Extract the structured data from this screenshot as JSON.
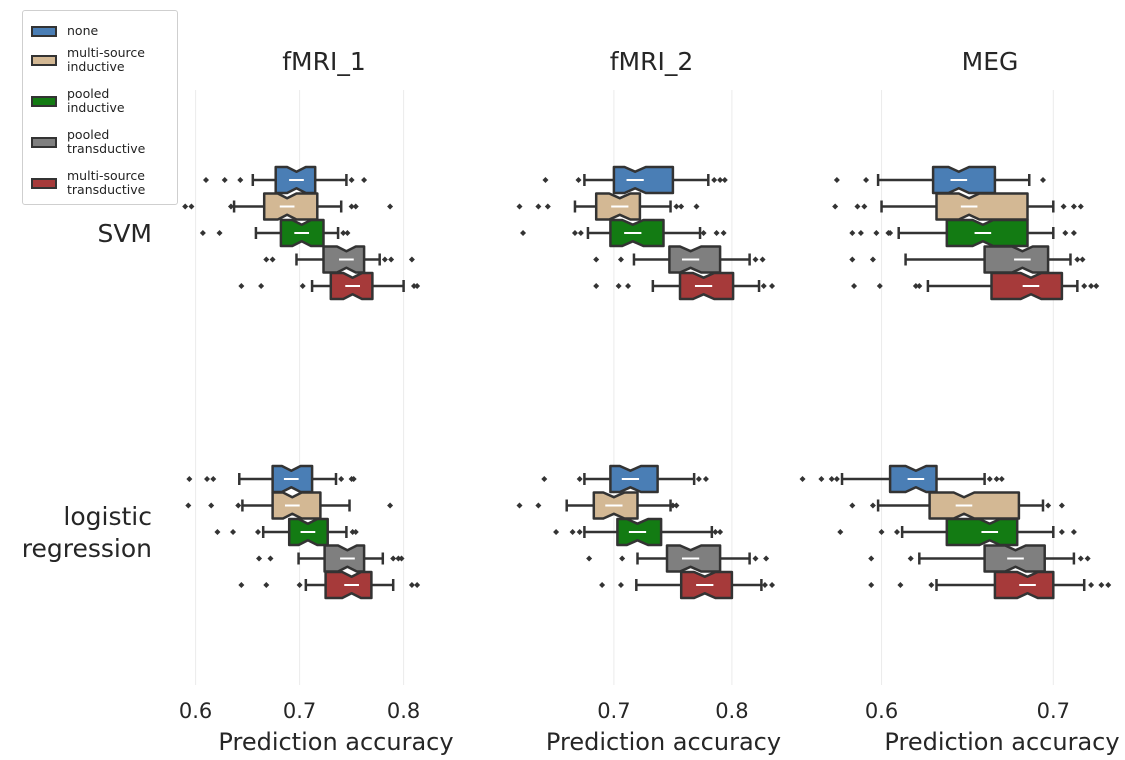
{
  "chart_data": {
    "type": "box",
    "notched": true,
    "orientation": "horizontal",
    "grid": "vertical",
    "legend_position": "top-left",
    "colors": {
      "none": "#4a7eb5",
      "multi-source inductive": "#d3b894",
      "pooled inductive": "#137b13",
      "pooled transductive": "#7f7f7f",
      "multi-source transductive": "#a63a3a"
    },
    "legend": [
      {
        "label": "none",
        "color": "#4a7eb5"
      },
      {
        "label": "multi-source\ninductive",
        "color": "#d3b894"
      },
      {
        "label": "pooled\ninductive",
        "color": "#137b13"
      },
      {
        "label": "pooled\ntransductive",
        "color": "#7f7f7f"
      },
      {
        "label": "multi-source\ntransductive",
        "color": "#a63a3a"
      }
    ],
    "rows": [
      "SVM",
      "logistic\nregression"
    ],
    "columns": [
      {
        "title": "fMRI_1",
        "xlabel": "Prediction accuracy",
        "ticks": [
          "0.6",
          "0.7",
          "0.8"
        ],
        "xlim": [
          0.585,
          0.835
        ]
      },
      {
        "title": "fMRI_2",
        "xlabel": "Prediction accuracy",
        "ticks": [
          "0.7",
          "0.8"
        ],
        "xlim": [
          0.595,
          0.845
        ]
      },
      {
        "title": "MEG",
        "xlabel": "Prediction accuracy",
        "ticks": [
          "0.6",
          "0.7"
        ],
        "xlim": [
          0.57,
          0.74
        ]
      }
    ],
    "panels": [
      {
        "column": "fMRI_1",
        "row": "SVM",
        "boxes": [
          {
            "method": "none",
            "whislo": 0.655,
            "q1": 0.677,
            "med": 0.697,
            "q3": 0.715,
            "whishi": 0.745,
            "notch": [
              0.688,
              0.706
            ],
            "fliers": [
              0.61,
              0.628,
              0.643,
              0.75,
              0.762
            ]
          },
          {
            "method": "multi-source inductive",
            "whislo": 0.637,
            "q1": 0.666,
            "med": 0.688,
            "q3": 0.717,
            "whishi": 0.74,
            "notch": [
              0.679,
              0.697
            ],
            "fliers": [
              0.59,
              0.596,
              0.634,
              0.75,
              0.754,
              0.787
            ]
          },
          {
            "method": "pooled inductive",
            "whislo": 0.658,
            "q1": 0.682,
            "med": 0.702,
            "q3": 0.723,
            "whishi": 0.737,
            "notch": [
              0.693,
              0.711
            ],
            "fliers": [
              0.607,
              0.623,
              0.742,
              0.746
            ]
          },
          {
            "method": "pooled transductive",
            "whislo": 0.697,
            "q1": 0.723,
            "med": 0.745,
            "q3": 0.762,
            "whishi": 0.777,
            "notch": [
              0.736,
              0.754
            ],
            "fliers": [
              0.668,
              0.674,
              0.782,
              0.788,
              0.808
            ]
          },
          {
            "method": "multi-source transductive",
            "whislo": 0.712,
            "q1": 0.73,
            "med": 0.751,
            "q3": 0.77,
            "whishi": 0.8,
            "notch": [
              0.742,
              0.76
            ],
            "fliers": [
              0.644,
              0.663,
              0.703,
              0.81,
              0.813
            ]
          }
        ]
      },
      {
        "column": "fMRI_2",
        "row": "SVM",
        "boxes": [
          {
            "method": "none",
            "whislo": 0.675,
            "q1": 0.7,
            "med": 0.718,
            "q3": 0.75,
            "whishi": 0.78,
            "notch": [
              0.709,
              0.727
            ],
            "fliers": [
              0.642,
              0.67,
              0.785,
              0.79,
              0.794
            ]
          },
          {
            "method": "multi-source inductive",
            "whislo": 0.667,
            "q1": 0.685,
            "med": 0.705,
            "q3": 0.722,
            "whishi": 0.748,
            "notch": [
              0.696,
              0.714
            ],
            "fliers": [
              0.62,
              0.636,
              0.644,
              0.753,
              0.757,
              0.77
            ]
          },
          {
            "method": "pooled inductive",
            "whislo": 0.678,
            "q1": 0.697,
            "med": 0.716,
            "q3": 0.742,
            "whishi": 0.773,
            "notch": [
              0.707,
              0.725
            ],
            "fliers": [
              0.623,
              0.667,
              0.672,
              0.776,
              0.787,
              0.793
            ]
          },
          {
            "method": "pooled transductive",
            "whislo": 0.717,
            "q1": 0.747,
            "med": 0.765,
            "q3": 0.79,
            "whishi": 0.815,
            "notch": [
              0.756,
              0.774
            ],
            "fliers": [
              0.685,
              0.706,
              0.82,
              0.826
            ]
          },
          {
            "method": "multi-source transductive",
            "whislo": 0.733,
            "q1": 0.756,
            "med": 0.776,
            "q3": 0.801,
            "whishi": 0.823,
            "notch": [
              0.767,
              0.785
            ],
            "fliers": [
              0.685,
              0.704,
              0.712,
              0.827,
              0.834
            ]
          }
        ]
      },
      {
        "column": "MEG",
        "row": "SVM",
        "boxes": [
          {
            "method": "none",
            "whislo": 0.598,
            "q1": 0.63,
            "med": 0.645,
            "q3": 0.666,
            "whishi": 0.686,
            "notch": [
              0.639,
              0.651
            ],
            "fliers": [
              0.574,
              0.591,
              0.694
            ]
          },
          {
            "method": "multi-source inductive",
            "whislo": 0.6,
            "q1": 0.632,
            "med": 0.651,
            "q3": 0.685,
            "whishi": 0.7,
            "notch": [
              0.645,
              0.657
            ],
            "fliers": [
              0.573,
              0.586,
              0.59,
              0.706,
              0.712,
              0.716
            ]
          },
          {
            "method": "pooled inductive",
            "whislo": 0.61,
            "q1": 0.638,
            "med": 0.659,
            "q3": 0.685,
            "whishi": 0.7,
            "notch": [
              0.653,
              0.665
            ],
            "fliers": [
              0.583,
              0.588,
              0.597,
              0.604,
              0.605,
              0.707,
              0.712
            ]
          },
          {
            "method": "pooled transductive",
            "whislo": 0.614,
            "q1": 0.66,
            "med": 0.682,
            "q3": 0.697,
            "whishi": 0.71,
            "notch": [
              0.676,
              0.688
            ],
            "fliers": [
              0.583,
              0.595,
              0.714,
              0.717
            ]
          },
          {
            "method": "multi-source transductive",
            "whislo": 0.627,
            "q1": 0.664,
            "med": 0.687,
            "q3": 0.705,
            "whishi": 0.714,
            "notch": [
              0.681,
              0.693
            ],
            "fliers": [
              0.584,
              0.599,
              0.62,
              0.622,
              0.718,
              0.722,
              0.725
            ]
          }
        ]
      },
      {
        "column": "fMRI_1",
        "row": "logistic\nregression",
        "boxes": [
          {
            "method": "none",
            "whislo": 0.642,
            "q1": 0.674,
            "med": 0.692,
            "q3": 0.712,
            "whishi": 0.735,
            "notch": [
              0.683,
              0.701
            ],
            "fliers": [
              0.594,
              0.611,
              0.617,
              0.74,
              0.75,
              0.752
            ]
          },
          {
            "method": "multi-source inductive",
            "whislo": 0.645,
            "q1": 0.674,
            "med": 0.693,
            "q3": 0.72,
            "whishi": 0.748,
            "notch": [
              0.684,
              0.702
            ],
            "fliers": [
              0.593,
              0.615,
              0.641,
              0.787
            ]
          },
          {
            "method": "pooled inductive",
            "whislo": 0.665,
            "q1": 0.69,
            "med": 0.708,
            "q3": 0.727,
            "whishi": 0.745,
            "notch": [
              0.699,
              0.717
            ],
            "fliers": [
              0.621,
              0.636,
              0.66,
              0.751,
              0.754
            ]
          },
          {
            "method": "pooled transductive",
            "whislo": 0.699,
            "q1": 0.724,
            "med": 0.746,
            "q3": 0.762,
            "whishi": 0.78,
            "notch": [
              0.737,
              0.755
            ],
            "fliers": [
              0.661,
              0.672,
              0.79,
              0.795,
              0.798
            ]
          },
          {
            "method": "multi-source transductive",
            "whislo": 0.706,
            "q1": 0.725,
            "med": 0.75,
            "q3": 0.769,
            "whishi": 0.79,
            "notch": [
              0.741,
              0.759
            ],
            "fliers": [
              0.644,
              0.668,
              0.7,
              0.808,
              0.813
            ]
          }
        ]
      },
      {
        "column": "fMRI_2",
        "row": "logistic\nregression",
        "boxes": [
          {
            "method": "none",
            "whislo": 0.675,
            "q1": 0.697,
            "med": 0.714,
            "q3": 0.737,
            "whishi": 0.768,
            "notch": [
              0.705,
              0.723
            ],
            "fliers": [
              0.641,
              0.671,
              0.772,
              0.778
            ]
          },
          {
            "method": "multi-source inductive",
            "whislo": 0.66,
            "q1": 0.683,
            "med": 0.7,
            "q3": 0.72,
            "whishi": 0.748,
            "notch": [
              0.691,
              0.709
            ],
            "fliers": [
              0.62,
              0.636,
              0.75,
              0.753
            ]
          },
          {
            "method": "pooled inductive",
            "whislo": 0.675,
            "q1": 0.703,
            "med": 0.72,
            "q3": 0.74,
            "whishi": 0.783,
            "notch": [
              0.711,
              0.729
            ],
            "fliers": [
              0.651,
              0.665,
              0.671,
              0.786,
              0.79
            ]
          },
          {
            "method": "pooled transductive",
            "whislo": 0.72,
            "q1": 0.745,
            "med": 0.765,
            "q3": 0.79,
            "whishi": 0.815,
            "notch": [
              0.756,
              0.774
            ],
            "fliers": [
              0.679,
              0.707,
              0.82,
              0.829
            ]
          },
          {
            "method": "multi-source transductive",
            "whislo": 0.719,
            "q1": 0.757,
            "med": 0.777,
            "q3": 0.8,
            "whishi": 0.825,
            "notch": [
              0.768,
              0.786
            ],
            "fliers": [
              0.69,
              0.706,
              0.828,
              0.834
            ]
          }
        ]
      },
      {
        "column": "MEG",
        "row": "logistic\nregression",
        "boxes": [
          {
            "method": "none",
            "whislo": 0.577,
            "q1": 0.605,
            "med": 0.62,
            "q3": 0.632,
            "whishi": 0.66,
            "notch": [
              0.614,
              0.626
            ],
            "fliers": [
              0.554,
              0.565,
              0.571,
              0.574,
              0.663,
              0.667,
              0.67
            ]
          },
          {
            "method": "multi-source inductive",
            "whislo": 0.598,
            "q1": 0.628,
            "med": 0.648,
            "q3": 0.68,
            "whishi": 0.694,
            "notch": [
              0.642,
              0.654
            ],
            "fliers": [
              0.583,
              0.595,
              0.697,
              0.705
            ]
          },
          {
            "method": "pooled inductive",
            "whislo": 0.612,
            "q1": 0.638,
            "med": 0.663,
            "q3": 0.679,
            "whishi": 0.7,
            "notch": [
              0.657,
              0.669
            ],
            "fliers": [
              0.576,
              0.6,
              0.609,
              0.705,
              0.712
            ]
          },
          {
            "method": "pooled transductive",
            "whislo": 0.622,
            "q1": 0.66,
            "med": 0.678,
            "q3": 0.695,
            "whishi": 0.712,
            "notch": [
              0.672,
              0.684
            ],
            "fliers": [
              0.594,
              0.617,
              0.716,
              0.72
            ]
          },
          {
            "method": "multi-source transductive",
            "whislo": 0.632,
            "q1": 0.666,
            "med": 0.685,
            "q3": 0.7,
            "whishi": 0.718,
            "notch": [
              0.679,
              0.691
            ],
            "fliers": [
              0.594,
              0.611,
              0.629,
              0.722,
              0.728,
              0.732
            ]
          }
        ]
      }
    ]
  }
}
